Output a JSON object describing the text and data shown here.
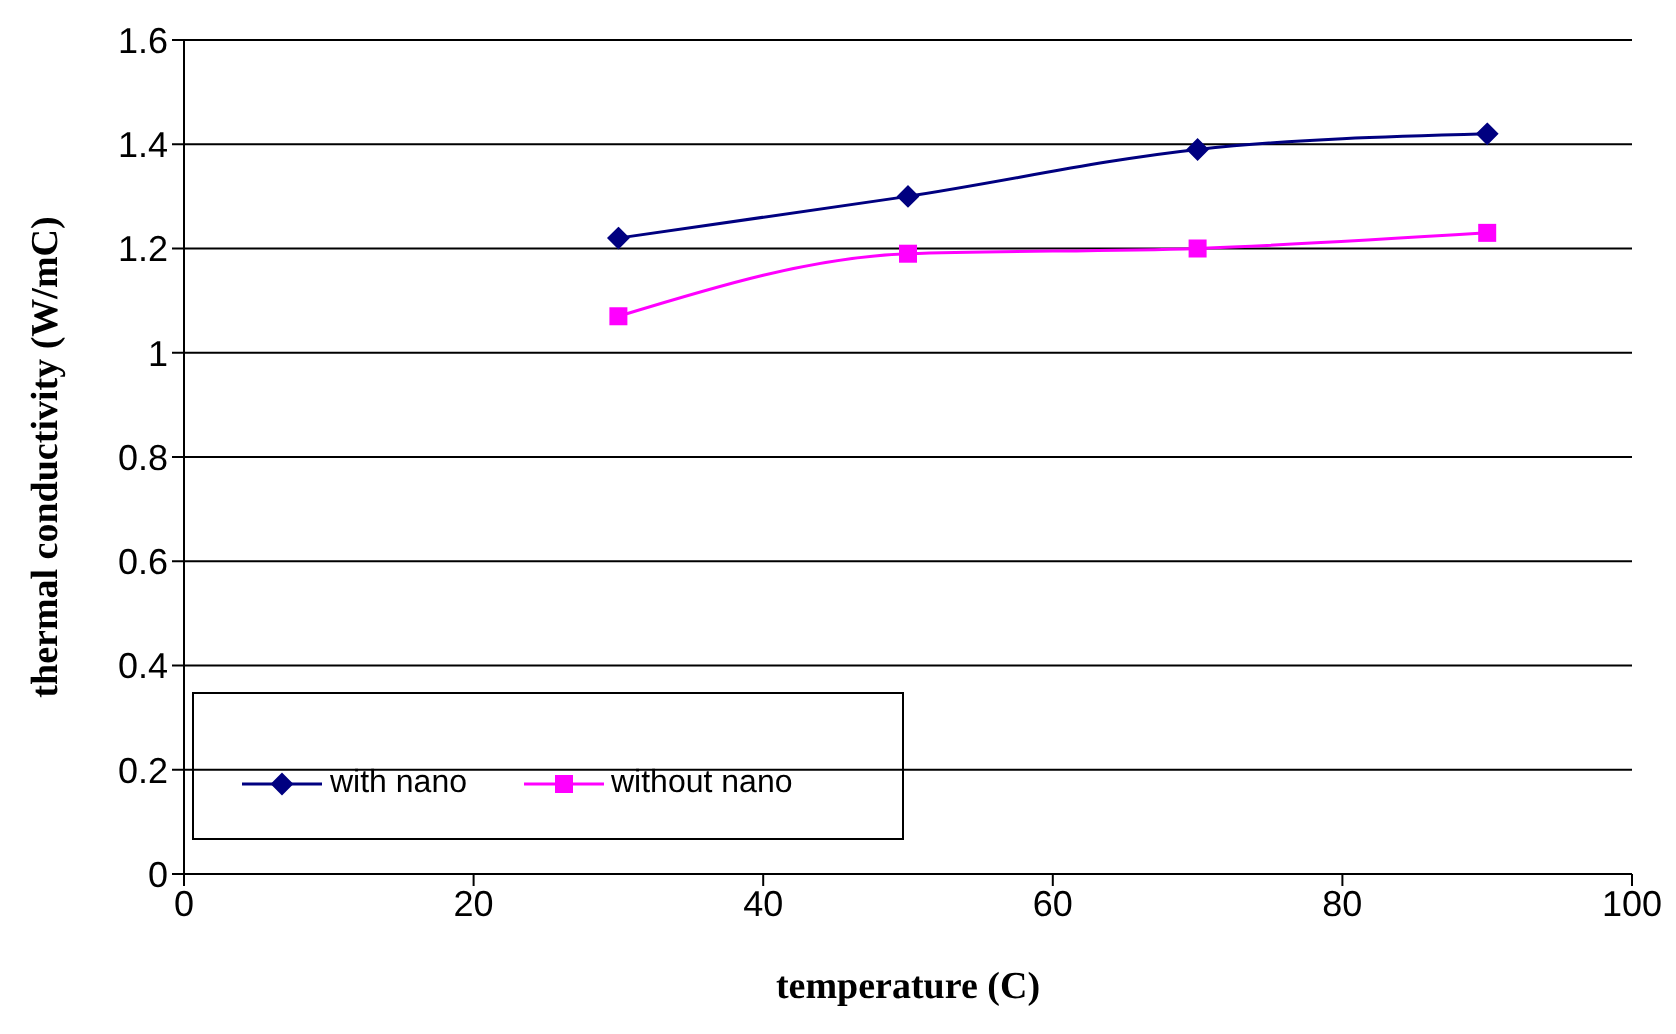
{
  "chart_data": {
    "type": "line",
    "xlabel": "temperature (C)",
    "ylabel": "thermal conductivity (W/mC)",
    "x": [
      30,
      50,
      70,
      90
    ],
    "series": [
      {
        "name": "with nano",
        "color": "#000080",
        "marker": "diamond",
        "values": [
          1.22,
          1.3,
          1.39,
          1.42
        ]
      },
      {
        "name": "without nano",
        "color": "#ff00ff",
        "marker": "square",
        "values": [
          1.07,
          1.19,
          1.2,
          1.23
        ]
      }
    ],
    "xlim": [
      0,
      100
    ],
    "xticks": [
      0,
      20,
      40,
      60,
      80,
      100
    ],
    "ylim": [
      0,
      1.6
    ],
    "yticks": [
      0,
      0.2,
      0.4,
      0.6,
      0.8,
      1,
      1.2,
      1.4,
      1.6
    ],
    "grid": "y",
    "legend": "bottom left"
  }
}
